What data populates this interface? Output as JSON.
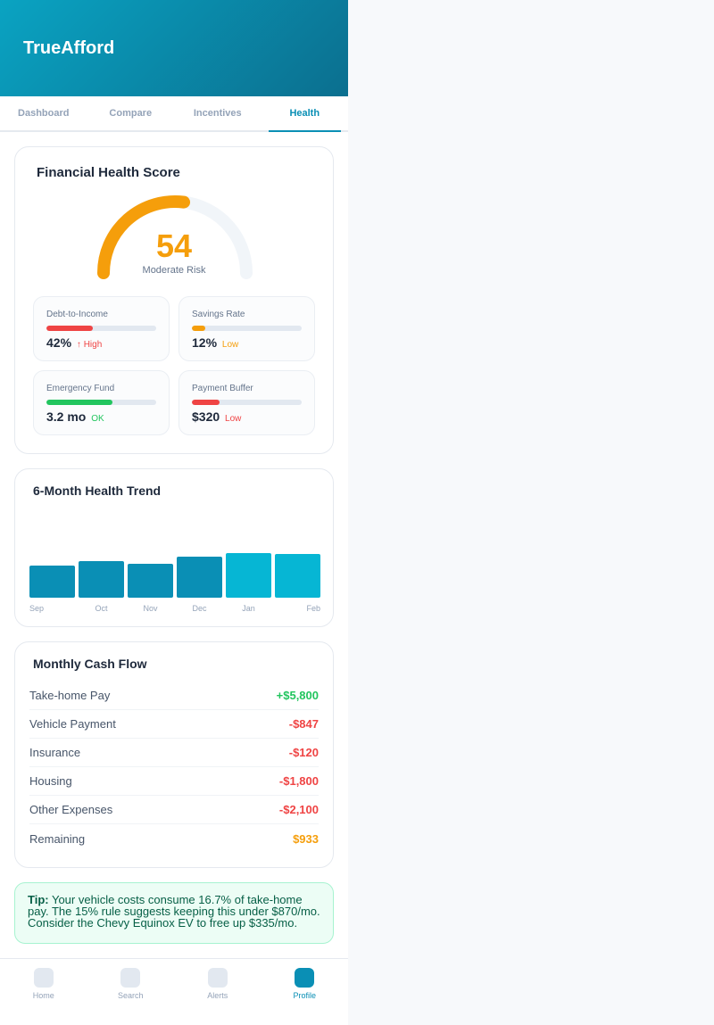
{
  "app": {
    "title": "TrueAfford",
    "logo_glyph": ""
  },
  "tabs": [
    {
      "label": "Dashboard"
    },
    {
      "label": "Compare"
    },
    {
      "label": "Incentives"
    },
    {
      "label": "Health",
      "active": true
    }
  ],
  "health": {
    "title": "Financial Health Score",
    "icon_glyph": "",
    "score": "54",
    "score_fraction": 0.54,
    "score_label": "Moderate Risk",
    "metrics": [
      {
        "label": "Debt-to-Income",
        "value": "42%",
        "status": "↑ High",
        "fill": 0.42,
        "bar_color": "#ef4444",
        "status_color": "#ef4444"
      },
      {
        "label": "Savings Rate",
        "value": "12%",
        "status": "Low",
        "fill": 0.12,
        "bar_color": "#f59e0b",
        "status_color": "#f59e0b"
      },
      {
        "label": "Emergency Fund",
        "value": "3.2 mo",
        "status": "OK",
        "fill": 0.6,
        "bar_color": "#22c55e",
        "status_color": "#22c55e"
      },
      {
        "label": "Payment Buffer",
        "value": "$320",
        "status": "Low",
        "fill": 0.25,
        "bar_color": "#ef4444",
        "status_color": "#ef4444"
      }
    ]
  },
  "trend": {
    "title": "6-Month Health Trend",
    "icon_glyph": ""
  },
  "chart_data": {
    "type": "bar",
    "categories": [
      "Sep",
      "Oct",
      "Nov",
      "Dec",
      "Jan",
      "Feb"
    ],
    "values": [
      36,
      41,
      38,
      46,
      50,
      49
    ],
    "ylim": [
      0,
      100
    ],
    "highlight_from_index": 4,
    "colors": {
      "normal": "#0a8fb5",
      "highlight": "#06b6d4"
    },
    "grid": false,
    "legend": "none"
  },
  "cashflow": {
    "title": "Monthly Cash Flow",
    "icon_glyph": "",
    "rows": [
      {
        "label": "Take-home Pay",
        "amount": "+$5,800",
        "color": "#22c55e"
      },
      {
        "label": "Vehicle Payment",
        "amount": "-$847",
        "color": "#ef4444"
      },
      {
        "label": "Insurance",
        "amount": "-$120",
        "color": "#ef4444"
      },
      {
        "label": "Housing",
        "amount": "-$1,800",
        "color": "#ef4444"
      },
      {
        "label": "Other Expenses",
        "amount": "-$2,100",
        "color": "#ef4444"
      },
      {
        "label": "Remaining",
        "amount": "$933",
        "color": "#f59e0b"
      }
    ]
  },
  "tip": {
    "icon_glyph": "",
    "label": "Tip:",
    "text": " Your vehicle costs consume 16.7% of take-home pay. The 15% rule suggests keeping this under $870/mo. Consider the Chevy Equinox EV to free up $335/mo."
  },
  "bottom_nav": [
    {
      "label": "Home",
      "icon": "home-icon"
    },
    {
      "label": "Search",
      "icon": "search-icon"
    },
    {
      "label": "Alerts",
      "icon": "bell-icon"
    },
    {
      "label": "Profile",
      "icon": "user-icon",
      "active": true
    }
  ],
  "colors": {
    "accent": "#0a8fb5",
    "gauge": "#f59e0b",
    "gauge_track": "#f1f5f9"
  }
}
